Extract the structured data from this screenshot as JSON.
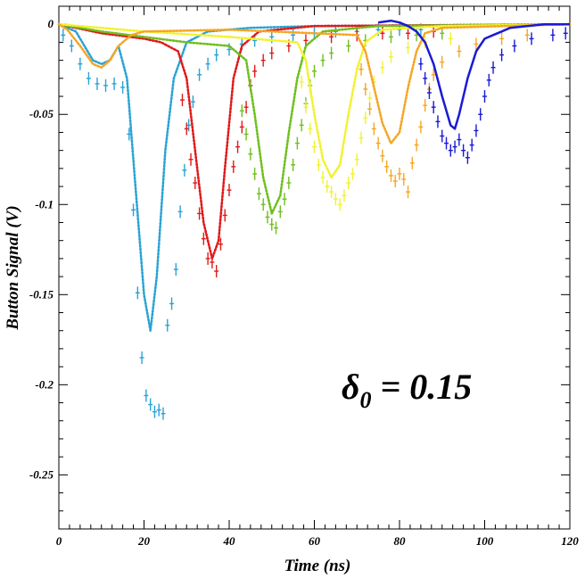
{
  "chart_data": {
    "type": "scatter",
    "xlabel": "Time (ns)",
    "ylabel": "Button Signal (V)",
    "xlim": [
      0,
      120
    ],
    "ylim": [
      -0.28,
      0.01
    ],
    "x_ticks": [
      0,
      20,
      40,
      60,
      80,
      100,
      120
    ],
    "x_tick_labels": [
      "0",
      "20",
      "40",
      "60",
      "80",
      "100",
      "120"
    ],
    "y_ticks": [
      0,
      -0.05,
      -0.1,
      -0.15,
      -0.2,
      -0.25
    ],
    "y_tick_labels": [
      "0",
      "-0.05",
      "-0.1",
      "-0.15",
      "-0.2",
      "-0.25"
    ],
    "grid": false,
    "annotation": {
      "symbol": "δ",
      "subscript": "0",
      "text": " = 0.15"
    },
    "series": [
      {
        "color": "#2aa3d4",
        "style": "dotted-simulation",
        "sim": [
          [
            0,
            0
          ],
          [
            4,
            -0.004
          ],
          [
            6,
            -0.012
          ],
          [
            8,
            -0.02
          ],
          [
            10,
            -0.022
          ],
          [
            12,
            -0.02
          ],
          [
            14,
            -0.012
          ],
          [
            16,
            -0.03
          ],
          [
            18,
            -0.09
          ],
          [
            20,
            -0.15
          ],
          [
            21.5,
            -0.17
          ],
          [
            23,
            -0.14
          ],
          [
            25,
            -0.07
          ],
          [
            27,
            -0.03
          ],
          [
            30,
            -0.01
          ],
          [
            35,
            -0.004
          ],
          [
            45,
            -0.002
          ],
          [
            60,
            -0.001
          ],
          [
            120,
            0
          ]
        ],
        "measured": [
          [
            1,
            -0.006
          ],
          [
            3,
            -0.012
          ],
          [
            5,
            -0.022
          ],
          [
            7,
            -0.03
          ],
          [
            9,
            -0.033
          ],
          [
            11,
            -0.034
          ],
          [
            13,
            -0.033
          ],
          [
            15,
            -0.035
          ],
          [
            16.5,
            -0.061
          ],
          [
            17.5,
            -0.103
          ],
          [
            18.5,
            -0.149
          ],
          [
            19.5,
            -0.185
          ],
          [
            20.5,
            -0.206
          ],
          [
            21.5,
            -0.211
          ],
          [
            22.5,
            -0.215
          ],
          [
            23.5,
            -0.214
          ],
          [
            24.5,
            -0.216
          ],
          [
            25.5,
            -0.167
          ],
          [
            26.5,
            -0.155
          ],
          [
            27.5,
            -0.136
          ],
          [
            28.5,
            -0.104
          ],
          [
            29.5,
            -0.081
          ],
          [
            30.5,
            -0.056
          ],
          [
            31.5,
            -0.043
          ],
          [
            33,
            -0.028
          ],
          [
            35,
            -0.022
          ],
          [
            37,
            -0.017
          ],
          [
            40,
            -0.014
          ],
          [
            43,
            -0.011
          ],
          [
            46,
            -0.009
          ],
          [
            50,
            -0.007
          ],
          [
            55,
            -0.006
          ],
          [
            60,
            -0.005
          ],
          [
            65,
            -0.004
          ],
          [
            70,
            -0.004
          ],
          [
            75,
            -0.003
          ],
          [
            80,
            -0.003
          ],
          [
            85,
            -0.003
          ]
        ]
      },
      {
        "color": "#e01a1a",
        "style": "dotted-simulation",
        "sim": [
          [
            0,
            0
          ],
          [
            10,
            -0.005
          ],
          [
            20,
            -0.008
          ],
          [
            24,
            -0.01
          ],
          [
            28,
            -0.015
          ],
          [
            30,
            -0.03
          ],
          [
            32,
            -0.07
          ],
          [
            34,
            -0.11
          ],
          [
            36,
            -0.13
          ],
          [
            37.5,
            -0.12
          ],
          [
            39,
            -0.08
          ],
          [
            41,
            -0.03
          ],
          [
            43,
            -0.012
          ],
          [
            47,
            -0.004
          ],
          [
            60,
            -0.001
          ],
          [
            120,
            0
          ]
        ],
        "measured": [
          [
            29,
            -0.042
          ],
          [
            30,
            -0.058
          ],
          [
            31,
            -0.075
          ],
          [
            32,
            -0.088
          ],
          [
            33,
            -0.105
          ],
          [
            34,
            -0.119
          ],
          [
            35,
            -0.13
          ],
          [
            36,
            -0.132
          ],
          [
            37,
            -0.137
          ],
          [
            38,
            -0.122
          ],
          [
            39,
            -0.106
          ],
          [
            40,
            -0.092
          ],
          [
            41,
            -0.079
          ],
          [
            42,
            -0.068
          ],
          [
            43,
            -0.057
          ],
          [
            44,
            -0.046
          ],
          [
            45,
            -0.034
          ],
          [
            46,
            -0.026
          ],
          [
            48,
            -0.02
          ],
          [
            50,
            -0.016
          ],
          [
            54,
            -0.012
          ],
          [
            58,
            -0.009
          ],
          [
            64,
            -0.007
          ],
          [
            70,
            -0.006
          ],
          [
            76,
            -0.005
          ],
          [
            82,
            -0.005
          ],
          [
            88,
            -0.004
          ]
        ]
      },
      {
        "color": "#6fbf1f",
        "style": "dotted-simulation",
        "sim": [
          [
            0,
            0
          ],
          [
            10,
            -0.004
          ],
          [
            20,
            -0.007
          ],
          [
            30,
            -0.01
          ],
          [
            40,
            -0.012
          ],
          [
            44,
            -0.02
          ],
          [
            46,
            -0.05
          ],
          [
            48,
            -0.085
          ],
          [
            50,
            -0.105
          ],
          [
            52,
            -0.095
          ],
          [
            54,
            -0.06
          ],
          [
            56,
            -0.03
          ],
          [
            58,
            -0.012
          ],
          [
            62,
            -0.004
          ],
          [
            75,
            -0.001
          ],
          [
            120,
            0
          ]
        ],
        "measured": [
          [
            43,
            -0.048
          ],
          [
            44,
            -0.061
          ],
          [
            45,
            -0.072
          ],
          [
            46,
            -0.083
          ],
          [
            47,
            -0.094
          ],
          [
            48,
            -0.1
          ],
          [
            49,
            -0.107
          ],
          [
            50,
            -0.111
          ],
          [
            51,
            -0.113
          ],
          [
            52,
            -0.104
          ],
          [
            53,
            -0.097
          ],
          [
            54,
            -0.088
          ],
          [
            55,
            -0.078
          ],
          [
            56,
            -0.066
          ],
          [
            57,
            -0.056
          ],
          [
            58,
            -0.044
          ],
          [
            59,
            -0.034
          ],
          [
            60,
            -0.026
          ],
          [
            62,
            -0.02
          ],
          [
            64,
            -0.016
          ],
          [
            68,
            -0.012
          ],
          [
            72,
            -0.009
          ],
          [
            78,
            -0.007
          ],
          [
            84,
            -0.006
          ],
          [
            90,
            -0.005
          ]
        ]
      },
      {
        "color": "#f2f230",
        "style": "dotted-simulation",
        "sim": [
          [
            0,
            0
          ],
          [
            20,
            -0.004
          ],
          [
            40,
            -0.007
          ],
          [
            56,
            -0.01
          ],
          [
            58,
            -0.02
          ],
          [
            60,
            -0.05
          ],
          [
            62,
            -0.075
          ],
          [
            64,
            -0.085
          ],
          [
            66,
            -0.078
          ],
          [
            68,
            -0.05
          ],
          [
            70,
            -0.025
          ],
          [
            72,
            -0.01
          ],
          [
            76,
            -0.003
          ],
          [
            90,
            -0.001
          ],
          [
            120,
            0
          ]
        ],
        "measured": [
          [
            57,
            -0.032
          ],
          [
            58,
            -0.046
          ],
          [
            59,
            -0.058
          ],
          [
            60,
            -0.068
          ],
          [
            61,
            -0.078
          ],
          [
            62,
            -0.085
          ],
          [
            63,
            -0.09
          ],
          [
            64,
            -0.093
          ],
          [
            65,
            -0.097
          ],
          [
            66,
            -0.1
          ],
          [
            67,
            -0.095
          ],
          [
            68,
            -0.088
          ],
          [
            69,
            -0.083
          ],
          [
            70,
            -0.075
          ],
          [
            71,
            -0.063
          ],
          [
            72,
            -0.052
          ],
          [
            73,
            -0.041
          ],
          [
            74,
            -0.032
          ],
          [
            76,
            -0.024
          ],
          [
            78,
            -0.018
          ],
          [
            82,
            -0.013
          ],
          [
            86,
            -0.01
          ],
          [
            92,
            -0.008
          ]
        ]
      },
      {
        "color": "#f5a623",
        "style": "dotted-simulation",
        "sim": [
          [
            0,
            0
          ],
          [
            2,
            -0.003
          ],
          [
            5,
            -0.012
          ],
          [
            8,
            -0.022
          ],
          [
            10,
            -0.024
          ],
          [
            12,
            -0.02
          ],
          [
            14,
            -0.012
          ],
          [
            17,
            -0.006
          ],
          [
            20,
            -0.004
          ],
          [
            40,
            -0.003
          ],
          [
            70,
            -0.006
          ],
          [
            72,
            -0.015
          ],
          [
            74,
            -0.035
          ],
          [
            76,
            -0.055
          ],
          [
            78,
            -0.066
          ],
          [
            80,
            -0.06
          ],
          [
            82,
            -0.035
          ],
          [
            84,
            -0.015
          ],
          [
            86,
            -0.005
          ],
          [
            90,
            -0.002
          ],
          [
            120,
            0
          ]
        ],
        "measured": [
          [
            71,
            -0.025
          ],
          [
            72,
            -0.036
          ],
          [
            73,
            -0.047
          ],
          [
            74,
            -0.058
          ],
          [
            75,
            -0.066
          ],
          [
            76,
            -0.073
          ],
          [
            77,
            -0.079
          ],
          [
            78,
            -0.084
          ],
          [
            79,
            -0.087
          ],
          [
            80,
            -0.083
          ],
          [
            81,
            -0.086
          ],
          [
            82,
            -0.093
          ],
          [
            83,
            -0.077
          ],
          [
            84,
            -0.067
          ],
          [
            85,
            -0.057
          ],
          [
            86,
            -0.045
          ],
          [
            87,
            -0.036
          ],
          [
            88,
            -0.028
          ],
          [
            90,
            -0.021
          ],
          [
            94,
            -0.015
          ],
          [
            98,
            -0.011
          ],
          [
            104,
            -0.008
          ],
          [
            110,
            -0.006
          ]
        ]
      },
      {
        "color": "#1a1ad6",
        "style": "solid-simulation",
        "sim": [
          [
            75,
            0.001
          ],
          [
            78,
            0.002
          ],
          [
            80,
            0.001
          ],
          [
            82,
            -0.001
          ],
          [
            84,
            -0.004
          ],
          [
            86,
            -0.01
          ],
          [
            88,
            -0.022
          ],
          [
            90,
            -0.04
          ],
          [
            92,
            -0.056
          ],
          [
            93,
            -0.058
          ],
          [
            94,
            -0.05
          ],
          [
            96,
            -0.03
          ],
          [
            98,
            -0.015
          ],
          [
            100,
            -0.008
          ],
          [
            102,
            -0.006
          ],
          [
            104,
            -0.004
          ],
          [
            106,
            -0.002
          ],
          [
            110,
            -0.001
          ],
          [
            114,
            0.0
          ],
          [
            120,
            0.0
          ]
        ],
        "measured": [
          [
            85,
            -0.022
          ],
          [
            86,
            -0.03
          ],
          [
            87,
            -0.038
          ],
          [
            88,
            -0.046
          ],
          [
            89,
            -0.054
          ],
          [
            90,
            -0.062
          ],
          [
            91,
            -0.066
          ],
          [
            92,
            -0.07
          ],
          [
            93,
            -0.068
          ],
          [
            94,
            -0.064
          ],
          [
            95,
            -0.07
          ],
          [
            96,
            -0.074
          ],
          [
            97,
            -0.067
          ],
          [
            98,
            -0.059
          ],
          [
            99,
            -0.05
          ],
          [
            100,
            -0.04
          ],
          [
            101,
            -0.031
          ],
          [
            102,
            -0.024
          ],
          [
            104,
            -0.017
          ],
          [
            107,
            -0.012
          ],
          [
            111,
            -0.008
          ],
          [
            116,
            -0.006
          ],
          [
            119,
            -0.005
          ]
        ]
      }
    ]
  }
}
